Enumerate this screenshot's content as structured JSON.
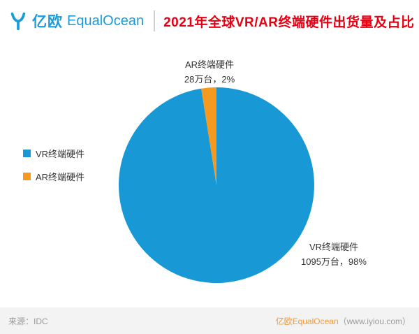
{
  "header": {
    "logo_cn": "亿欧",
    "logo_en": "EqualOcean",
    "title": "2021年全球VR/AR终端硬件出货量及占比"
  },
  "colors": {
    "vr_blue": "#1899d6",
    "ar_orange": "#f5991f",
    "title_red": "#e60012",
    "logo_blue": "#1b9bd8"
  },
  "chart_data": {
    "type": "pie",
    "title": "2021年全球VR/AR终端硬件出货量及占比",
    "unit": "万台",
    "series": [
      {
        "name": "VR终端硬件",
        "value": 1095,
        "percent": 98,
        "color": "#1899d6"
      },
      {
        "name": "AR终端硬件",
        "value": 28,
        "percent": 2,
        "color": "#f5991f"
      }
    ],
    "start_angle_deg": 0,
    "direction": "clockwise",
    "legend_position": "left",
    "labels": {
      "ar": {
        "line1": "AR终端硬件",
        "line2": "28万台，2%"
      },
      "vr": {
        "line1": "VR终端硬件",
        "line2": "1095万台，98%"
      }
    }
  },
  "legend": [
    {
      "label": "VR终端硬件",
      "color": "#1899d6"
    },
    {
      "label": "AR终端硬件",
      "color": "#f5991f"
    }
  ],
  "footer": {
    "source": "来源：IDC",
    "brand": "亿欧EqualOcean",
    "site": "（www.iyiou.com）"
  }
}
